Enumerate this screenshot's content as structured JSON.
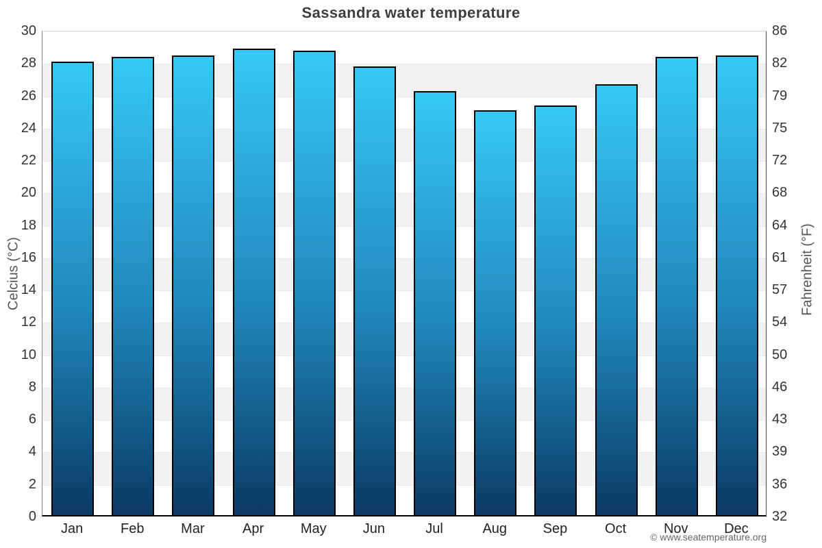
{
  "title": "Sassandra water temperature",
  "footer": "© www.seatemperature.org",
  "chart_data": {
    "type": "bar",
    "title": "Sassandra water temperature",
    "categories": [
      "Jan",
      "Feb",
      "Mar",
      "Apr",
      "May",
      "Jun",
      "Jul",
      "Aug",
      "Sep",
      "Oct",
      "Nov",
      "Dec"
    ],
    "values": [
      28.0,
      28.3,
      28.4,
      28.8,
      28.7,
      27.7,
      26.2,
      25.0,
      25.3,
      26.6,
      28.3,
      28.4
    ],
    "unit": "°C",
    "ylabel_left": "Celcius (°C)",
    "ylabel_right": "Fahrenheit (°F)",
    "ylim_celsius": [
      0,
      30
    ],
    "celsius_ticks": [
      0,
      2,
      4,
      6,
      8,
      10,
      12,
      14,
      16,
      18,
      20,
      22,
      24,
      26,
      28,
      30
    ],
    "fahrenheit_ticks": [
      32,
      36,
      39,
      43,
      46,
      50,
      54,
      57,
      61,
      64,
      68,
      72,
      75,
      79,
      82,
      86
    ],
    "legend": "none",
    "grid": "alternating horizontal 2°C bands",
    "colors": {
      "bar_gradient_top": "#36c9f6",
      "bar_gradient_mid": "#1f87b9",
      "bar_gradient_bottom": "#0a3a64",
      "bar_border": "#000000",
      "band_gray": "#f2f2f2",
      "band_white": "#ffffff",
      "gridline": "#e7e7e7"
    }
  }
}
